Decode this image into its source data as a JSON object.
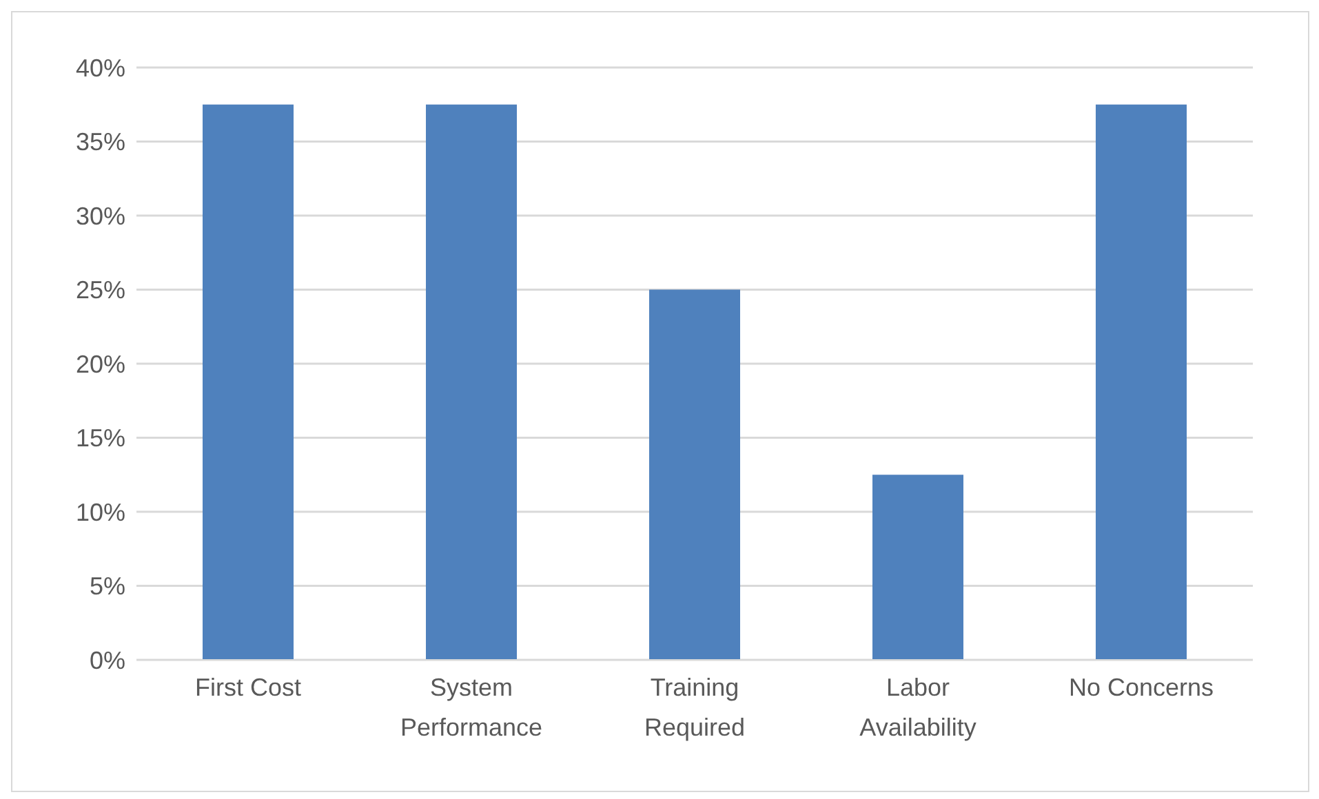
{
  "chart_data": {
    "type": "bar",
    "categories": [
      "First Cost",
      "System Performance",
      "Training Required",
      "Labor Availability",
      "No Concerns"
    ],
    "values": [
      37.5,
      37.5,
      25,
      12.5,
      37.5
    ],
    "color": "#4f81bd",
    "ylim": [
      0,
      40
    ],
    "yticks": [
      {
        "value": 0,
        "label": "0%"
      },
      {
        "value": 5,
        "label": "5%"
      },
      {
        "value": 10,
        "label": "10%"
      },
      {
        "value": 15,
        "label": "15%"
      },
      {
        "value": 20,
        "label": "20%"
      },
      {
        "value": 25,
        "label": "25%"
      },
      {
        "value": 30,
        "label": "30%"
      },
      {
        "value": 35,
        "label": "35%"
      },
      {
        "value": 40,
        "label": "40%"
      }
    ],
    "grid": "y"
  }
}
